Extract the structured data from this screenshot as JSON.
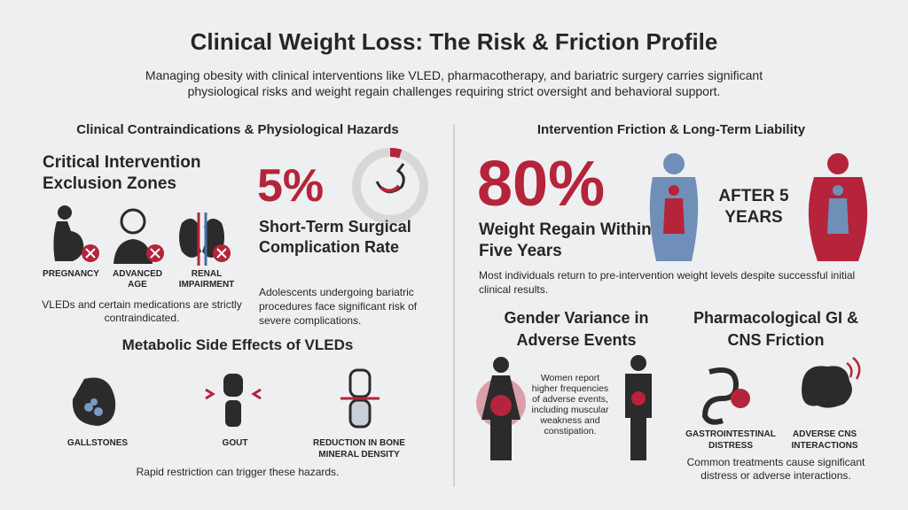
{
  "header": {
    "title": "Clinical Weight Loss: The Risk & Friction Profile",
    "subtitle": "Managing obesity with clinical interventions like VLED, pharmacotherapy, and bariatric surgery carries significant physiological risks and weight regain challenges requiring strict oversight and behavioral support."
  },
  "left": {
    "heading": "Clinical Contraindications & Physiological Hazards",
    "exclusion": {
      "title": "Critical Intervention Exclusion Zones",
      "items": [
        "PREGNANCY",
        "ADVANCED AGE",
        "RENAL IMPAIRMENT"
      ],
      "note": "VLEDs and certain medications are strictly contraindicated."
    },
    "complication": {
      "stat": "5%",
      "label": "Short-Term Surgical Complication Rate",
      "note": "Adolescents undergoing bariatric procedures face significant risk of severe complications."
    },
    "metabolic": {
      "title": "Metabolic Side Effects of VLEDs",
      "items": [
        "GALLSTONES",
        "GOUT",
        "REDUCTION IN BONE MINERAL DENSITY"
      ],
      "note": "Rapid restriction can trigger these hazards."
    }
  },
  "right": {
    "heading": "Intervention Friction & Long-Term Liability",
    "regain": {
      "stat": "80%",
      "label": "Weight Regain Within Five Years",
      "after": "AFTER 5 YEARS",
      "note": "Most individuals return to pre-intervention weight levels despite successful initial clinical results."
    },
    "gender": {
      "title": "Gender Variance in Adverse Events",
      "note": "Women report higher frequencies of adverse events, including muscular weakness and constipation."
    },
    "pharma": {
      "title": "Pharmacological GI & CNS Friction",
      "items": [
        "GASTROINTESTINAL DISTRESS",
        "ADVERSE CNS INTERACTIONS"
      ],
      "note": "Common treatments cause significant distress or adverse interactions."
    }
  }
}
